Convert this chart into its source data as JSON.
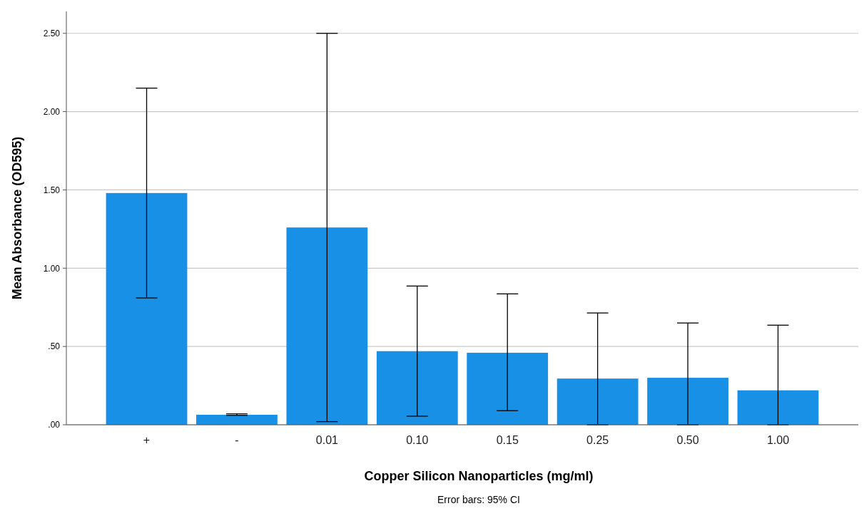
{
  "chart_data": {
    "type": "bar",
    "xlabel": "Copper Silicon Nanoparticles (mg/ml)",
    "ylabel": "Mean Absorbance (OD595)",
    "categories": [
      "+",
      "-",
      "0.01",
      "0.10",
      "0.15",
      "0.25",
      "0.50",
      "1.00"
    ],
    "values": [
      1.48,
      0.064,
      1.26,
      0.47,
      0.46,
      0.295,
      0.3,
      0.22
    ],
    "errors": [
      [
        0.81,
        2.15
      ],
      [
        0.06,
        0.07
      ],
      [
        0.02,
        2.5
      ],
      [
        0.055,
        0.886
      ],
      [
        0.09,
        0.836
      ],
      [
        0,
        0.714
      ],
      [
        0,
        0.65
      ],
      [
        0,
        0.636
      ]
    ],
    "color": "#1790e6",
    "ylim": [
      0,
      2.64
    ],
    "yticks": [
      {
        "value": 0,
        "label": ".00"
      },
      {
        "value": 0.5,
        "label": ".50"
      },
      {
        "value": 1,
        "label": "1.00"
      },
      {
        "value": 1.5,
        "label": "1.50"
      },
      {
        "value": 2,
        "label": "2.00"
      },
      {
        "value": 2.5,
        "label": "2.50"
      }
    ],
    "grid": "y",
    "annotations": [
      "Error bars: 95% CI"
    ]
  }
}
